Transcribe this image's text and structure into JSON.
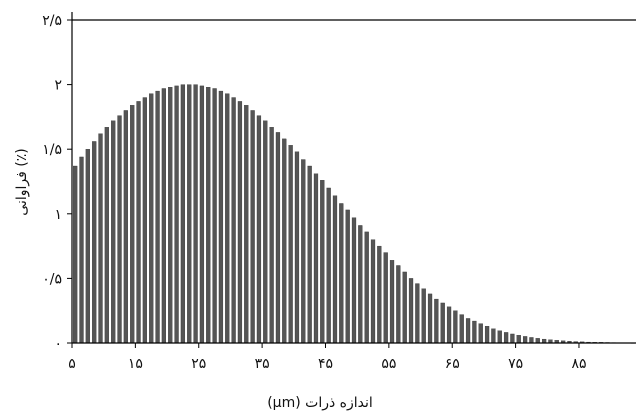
{
  "chart_data": {
    "type": "bar",
    "xlabel": "(μm) اندازه ذرات",
    "ylabel": "فراوانی (٪)",
    "ylim": [
      0,
      2.5
    ],
    "xlim": [
      5,
      94
    ],
    "x_ticks": [
      5,
      15,
      25,
      35,
      45,
      55,
      65,
      75,
      85
    ],
    "x_tick_labels": [
      "۵",
      "۱۵",
      "۲۵",
      "۳۵",
      "۴۵",
      "۵۵",
      "۶۵",
      "۷۵",
      "۸۵"
    ],
    "y_ticks": [
      0,
      0.5,
      1,
      1.5,
      2,
      2.5
    ],
    "y_tick_labels": [
      "۰",
      "۰/۵",
      "۱",
      "۱/۵",
      "۲",
      "۲/۵"
    ],
    "grid": false,
    "bar_color": "#555555",
    "x": [
      5,
      6,
      7,
      8,
      9,
      10,
      11,
      12,
      13,
      14,
      15,
      16,
      17,
      18,
      19,
      20,
      21,
      22,
      23,
      24,
      25,
      26,
      27,
      28,
      29,
      30,
      31,
      32,
      33,
      34,
      35,
      36,
      37,
      38,
      39,
      40,
      41,
      42,
      43,
      44,
      45,
      46,
      47,
      48,
      49,
      50,
      51,
      52,
      53,
      54,
      55,
      56,
      57,
      58,
      59,
      60,
      61,
      62,
      63,
      64,
      65,
      66,
      67,
      68,
      69,
      70,
      71,
      72,
      73,
      74,
      75,
      76,
      77,
      78,
      79,
      80,
      81,
      82,
      83,
      84,
      85,
      86,
      87,
      88,
      89,
      90,
      91,
      92,
      93
    ],
    "values": [
      1.37,
      1.44,
      1.5,
      1.56,
      1.62,
      1.67,
      1.72,
      1.76,
      1.8,
      1.84,
      1.87,
      1.9,
      1.93,
      1.95,
      1.97,
      1.98,
      1.99,
      2.0,
      2.0,
      2.0,
      1.99,
      1.98,
      1.97,
      1.95,
      1.93,
      1.9,
      1.87,
      1.84,
      1.8,
      1.76,
      1.72,
      1.67,
      1.63,
      1.58,
      1.53,
      1.48,
      1.42,
      1.37,
      1.31,
      1.26,
      1.2,
      1.14,
      1.08,
      1.03,
      0.97,
      0.91,
      0.86,
      0.8,
      0.75,
      0.7,
      0.64,
      0.6,
      0.55,
      0.5,
      0.46,
      0.42,
      0.38,
      0.34,
      0.31,
      0.28,
      0.25,
      0.22,
      0.19,
      0.17,
      0.15,
      0.13,
      0.11,
      0.095,
      0.082,
      0.07,
      0.06,
      0.051,
      0.043,
      0.036,
      0.03,
      0.025,
      0.021,
      0.017,
      0.014,
      0.011,
      0.009,
      0.007,
      0.006,
      0.005,
      0.004,
      0.003,
      0.0025,
      0.002,
      0.0015
    ]
  }
}
